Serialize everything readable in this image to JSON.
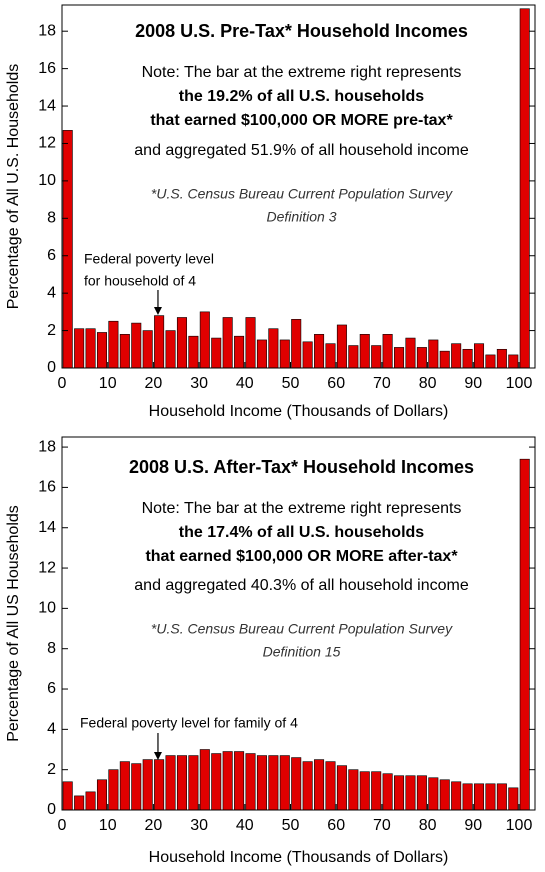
{
  "chart_data": [
    {
      "type": "histogram",
      "title": "2008 U.S. Pre-Tax* Household Incomes",
      "note": [
        "Note: The bar at the extreme right represents",
        "the 19.2% of all U.S. households",
        "that earned $100,000 OR MORE pre-tax*",
        "and aggregated 51.9% of all household income"
      ],
      "source": [
        "*U.S. Census Bureau Current Population Survey",
        "Definition 3"
      ],
      "annotation": [
        "Federal poverty level",
        "for household of 4"
      ],
      "x_label": "Household Income (Thousands of Dollars)",
      "y_label": "Percentage of All U.S. Households",
      "color": "#e00000",
      "bins": [
        0,
        2.5,
        5,
        7.5,
        10,
        12.5,
        15,
        17.5,
        20,
        22.5,
        25,
        27.5,
        30,
        32.5,
        35,
        37.5,
        40,
        42.5,
        45,
        47.5,
        50,
        52.5,
        55,
        57.5,
        60,
        62.5,
        65,
        67.5,
        70,
        72.5,
        75,
        77.5,
        80,
        82.5,
        85,
        87.5,
        90,
        92.5,
        95,
        97.5,
        100,
        102.5
      ],
      "values": [
        12.7,
        2.1,
        2.1,
        1.9,
        2.5,
        1.8,
        2.4,
        2.0,
        2.8,
        2.0,
        2.7,
        1.7,
        3.0,
        1.6,
        2.7,
        1.7,
        2.7,
        1.5,
        2.1,
        1.5,
        2.6,
        1.4,
        1.8,
        1.3,
        2.3,
        1.2,
        1.8,
        1.2,
        1.8,
        1.1,
        1.6,
        1.1,
        1.5,
        0.9,
        1.3,
        1.0,
        1.3,
        0.7,
        1.0,
        0.7,
        19.2
      ],
      "xlim": [
        0,
        103.5
      ],
      "xticks": [
        0,
        10,
        20,
        30,
        40,
        50,
        60,
        70,
        80,
        90,
        100
      ],
      "ylim": [
        0,
        19.4
      ],
      "yticks": [
        0,
        2,
        4,
        6,
        8,
        10,
        12,
        14,
        16,
        18
      ]
    },
    {
      "type": "histogram",
      "title": "2008 U.S. After-Tax* Household Incomes",
      "note": [
        "Note: The bar at the extreme right represents",
        "the 17.4% of all U.S. households",
        "that earned $100,000 OR MORE after-tax*",
        "and aggregated 40.3% of all household income"
      ],
      "source": [
        "*U.S. Census Bureau Current Population Survey",
        "Definition 15"
      ],
      "annotation": [
        "Federal poverty level for family of 4"
      ],
      "x_label": "Household Income (Thousands of Dollars)",
      "y_label": "Percentage of All US Households",
      "color": "#e00000",
      "bins": [
        0,
        2.5,
        5,
        7.5,
        10,
        12.5,
        15,
        17.5,
        20,
        22.5,
        25,
        27.5,
        30,
        32.5,
        35,
        37.5,
        40,
        42.5,
        45,
        47.5,
        50,
        52.5,
        55,
        57.5,
        60,
        62.5,
        65,
        67.5,
        70,
        72.5,
        75,
        77.5,
        80,
        82.5,
        85,
        87.5,
        90,
        92.5,
        95,
        97.5,
        100,
        102.5
      ],
      "values": [
        1.4,
        0.7,
        0.9,
        1.5,
        2.0,
        2.4,
        2.3,
        2.5,
        2.5,
        2.7,
        2.7,
        2.7,
        3.0,
        2.8,
        2.9,
        2.9,
        2.8,
        2.7,
        2.7,
        2.7,
        2.6,
        2.4,
        2.5,
        2.4,
        2.2,
        2.0,
        1.9,
        1.9,
        1.8,
        1.7,
        1.7,
        1.7,
        1.6,
        1.5,
        1.4,
        1.3,
        1.3,
        1.3,
        1.3,
        1.1,
        17.4
      ],
      "xlim": [
        0,
        103.5
      ],
      "xticks": [
        0,
        10,
        20,
        30,
        40,
        50,
        60,
        70,
        80,
        90,
        100
      ],
      "ylim": [
        0,
        18.5
      ],
      "yticks": [
        0,
        2,
        4,
        6,
        8,
        10,
        12,
        14,
        16,
        18
      ]
    }
  ]
}
